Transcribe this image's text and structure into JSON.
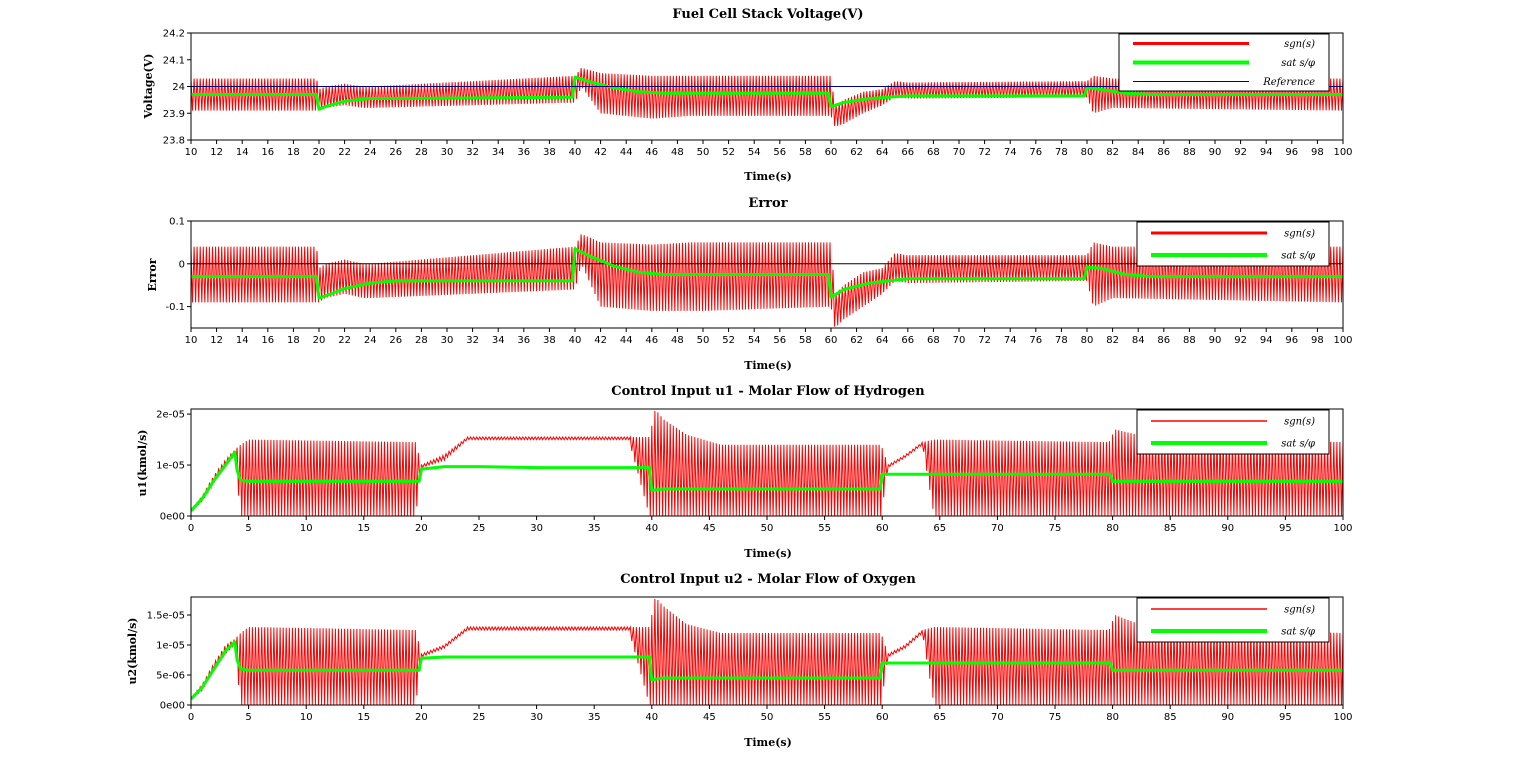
{
  "colors": {
    "sgn": "#ff0000",
    "sat": "#00ff00",
    "reference": "#000080",
    "axis": "#000000"
  },
  "legend_placement": "top-right",
  "chart_data": [
    {
      "type": "line",
      "title": "Fuel Cell Stack Voltage(V)",
      "xlabel": "Time(s)",
      "ylabel": "Voltage(V)",
      "xlim": [
        10,
        100
      ],
      "ylim": [
        23.8,
        24.2
      ],
      "xticks": [
        10,
        12,
        14,
        16,
        18,
        20,
        22,
        24,
        26,
        28,
        30,
        32,
        34,
        36,
        38,
        40,
        42,
        44,
        46,
        48,
        50,
        52,
        54,
        56,
        58,
        60,
        62,
        64,
        66,
        68,
        70,
        72,
        74,
        76,
        78,
        80,
        82,
        84,
        86,
        88,
        90,
        92,
        94,
        96,
        98,
        100
      ],
      "yticks": [
        {
          "value": 23.8,
          "label": "23.8"
        },
        {
          "value": 23.9,
          "label": "23.9"
        },
        {
          "value": 24.0,
          "label": "24"
        },
        {
          "value": 24.1,
          "label": "24.1"
        },
        {
          "value": 24.2,
          "label": "24.2"
        }
      ],
      "grid": false,
      "legend": [
        {
          "label": "sgn(s)",
          "key": "sgn"
        },
        {
          "label": "sat s/φ",
          "key": "sat"
        },
        {
          "label": "Reference",
          "key": "reference"
        }
      ],
      "series": [
        {
          "key": "sat",
          "x": [
            10,
            19.8,
            20,
            20.5,
            22,
            24,
            26,
            39.8,
            40,
            41,
            43,
            45,
            47,
            59.8,
            60,
            61,
            63,
            64.5,
            66,
            79.8,
            80,
            81,
            83,
            85,
            100
          ],
          "y": [
            23.97,
            23.97,
            23.915,
            23.925,
            23.945,
            23.955,
            23.955,
            23.96,
            24.035,
            24.02,
            23.995,
            23.98,
            23.975,
            23.975,
            23.925,
            23.94,
            23.955,
            23.96,
            23.965,
            23.965,
            23.995,
            23.99,
            23.975,
            23.97,
            23.97
          ]
        },
        {
          "key": "reference",
          "x": [
            10,
            100
          ],
          "y": [
            24,
            24
          ]
        },
        {
          "key": "sgn",
          "envelope": true,
          "x": [
            10,
            19.8,
            20,
            20.5,
            22,
            23.5,
            24,
            40,
            40.5,
            42,
            46,
            49,
            50,
            60,
            60.3,
            61,
            62.5,
            64,
            65,
            66,
            80,
            80.5,
            82,
            100
          ],
          "ymax": [
            24.03,
            24.03,
            23.99,
            24.0,
            24.01,
            24.0,
            24.0,
            24.04,
            24.07,
            24.05,
            24.04,
            24.04,
            24.04,
            24.04,
            23.93,
            23.95,
            23.98,
            23.99,
            24.02,
            24.015,
            24.02,
            24.04,
            24.03,
            24.03
          ],
          "ymin": [
            23.91,
            23.91,
            23.91,
            23.92,
            23.93,
            23.92,
            23.92,
            23.94,
            24.0,
            23.9,
            23.88,
            23.89,
            23.89,
            23.89,
            23.85,
            23.86,
            23.9,
            23.93,
            23.96,
            23.955,
            23.96,
            23.9,
            23.92,
            23.91
          ]
        }
      ]
    },
    {
      "type": "line",
      "title": "Error",
      "xlabel": "Time(s)",
      "ylabel": "Error",
      "xlim": [
        10,
        100
      ],
      "ylim": [
        -0.15,
        0.1
      ],
      "xticks": [
        10,
        12,
        14,
        16,
        18,
        20,
        22,
        24,
        26,
        28,
        30,
        32,
        34,
        36,
        38,
        40,
        42,
        44,
        46,
        48,
        50,
        52,
        54,
        56,
        58,
        60,
        62,
        64,
        66,
        68,
        70,
        72,
        74,
        76,
        78,
        80,
        82,
        84,
        86,
        88,
        90,
        92,
        94,
        96,
        98,
        100
      ],
      "yticks": [
        {
          "value": 0.1,
          "label": "0.1"
        },
        {
          "value": 0,
          "label": "0"
        },
        {
          "value": -0.1,
          "label": "-0.1"
        }
      ],
      "grid": false,
      "legend": [
        {
          "label": "sgn(s)",
          "key": "sgn"
        },
        {
          "label": "sat s/φ",
          "key": "sat"
        }
      ],
      "series": [
        {
          "key": "zero",
          "x": [
            10,
            100
          ],
          "y": [
            0,
            0
          ]
        },
        {
          "key": "sat",
          "x": [
            10,
            19.8,
            20,
            20.5,
            22,
            24,
            26,
            39.8,
            40,
            41,
            43,
            45,
            47,
            59.8,
            60,
            61,
            63,
            64.5,
            66,
            79.8,
            80,
            81,
            83,
            85,
            100
          ],
          "y": [
            -0.03,
            -0.03,
            -0.08,
            -0.075,
            -0.058,
            -0.045,
            -0.04,
            -0.04,
            0.035,
            0.02,
            -0.005,
            -0.02,
            -0.025,
            -0.025,
            -0.078,
            -0.06,
            -0.045,
            -0.04,
            -0.035,
            -0.035,
            -0.008,
            -0.01,
            -0.025,
            -0.03,
            -0.03
          ]
        },
        {
          "key": "sgn",
          "envelope": true,
          "x": [
            10,
            19.8,
            20,
            20.5,
            22,
            23.5,
            24,
            40,
            40.5,
            42,
            46,
            49,
            50,
            60,
            60.3,
            61,
            62.5,
            64,
            65,
            66,
            80,
            80.5,
            82,
            100
          ],
          "ymax": [
            0.04,
            0.04,
            -0.01,
            0.0,
            0.01,
            0.0,
            0.0,
            0.04,
            0.07,
            0.05,
            0.045,
            0.05,
            0.05,
            0.05,
            -0.07,
            -0.05,
            -0.02,
            -0.01,
            0.025,
            0.02,
            0.02,
            0.05,
            0.04,
            0.04
          ],
          "ymin": [
            -0.09,
            -0.09,
            -0.09,
            -0.08,
            -0.07,
            -0.08,
            -0.08,
            -0.06,
            0.0,
            -0.1,
            -0.11,
            -0.11,
            -0.11,
            -0.1,
            -0.15,
            -0.13,
            -0.1,
            -0.07,
            -0.04,
            -0.045,
            -0.04,
            -0.1,
            -0.08,
            -0.09
          ]
        }
      ]
    },
    {
      "type": "line",
      "title": "Control Input u1 - Molar Flow of Hydrogen",
      "xlabel": "Time(s)",
      "ylabel": "u1(kmol/s)",
      "xlim": [
        0,
        100
      ],
      "ylim": [
        0,
        2.1e-05
      ],
      "xticks": [
        0,
        5,
        10,
        15,
        20,
        25,
        30,
        35,
        40,
        45,
        50,
        55,
        60,
        65,
        70,
        75,
        80,
        85,
        90,
        95,
        100
      ],
      "yticks": [
        {
          "value": 0,
          "label": "0e00"
        },
        {
          "value": 1e-05,
          "label": "1e-05"
        },
        {
          "value": 2e-05,
          "label": "2e-05"
        }
      ],
      "grid": false,
      "legend": [
        {
          "label": "sgn(s)",
          "key": "sgn"
        },
        {
          "label": "sat s/φ",
          "key": "sat"
        }
      ],
      "series": [
        {
          "key": "sat",
          "x": [
            0,
            1,
            2,
            3,
            3.8,
            4,
            4.3,
            5,
            19.8,
            20,
            22,
            25,
            30,
            39.8,
            40,
            41,
            50,
            59.8,
            60,
            79.8,
            80,
            100
          ],
          "y": [
            1e-06,
            3.5e-06,
            7e-06,
            1e-05,
            1.25e-05,
            9e-06,
            7e-06,
            6.8e-06,
            6.8e-06,
            9.2e-06,
            9.7e-06,
            9.7e-06,
            9.5e-06,
            9.5e-06,
            5e-06,
            5.3e-06,
            5.3e-06,
            5.3e-06,
            8.2e-06,
            8.2e-06,
            6.8e-06,
            6.8e-06
          ]
        },
        {
          "key": "sgn",
          "envelope": true,
          "x": [
            0,
            1,
            2,
            3,
            3.8,
            4.3,
            5,
            19.5,
            20,
            22,
            24,
            28,
            38,
            39.8,
            40.3,
            41,
            43,
            46,
            59.9,
            60.5,
            62,
            63.5,
            64.5,
            79.7,
            80.2,
            83,
            100
          ],
          "ymax": [
            1.2e-06,
            4e-06,
            8e-06,
            1.1e-05,
            1.3e-05,
            1.4e-05,
            1.5e-05,
            1.45e-05,
            1e-05,
            1.2e-05,
            1.55e-05,
            1.55e-05,
            1.55e-05,
            1.55e-05,
            2.1e-05,
            1.9e-05,
            1.6e-05,
            1.4e-05,
            1.4e-05,
            1e-05,
            1.2e-05,
            1.45e-05,
            1.5e-05,
            1.45e-05,
            1.7e-05,
            1.55e-05,
            1.45e-05
          ],
          "ymin": [
            1e-06,
            3e-06,
            6.5e-06,
            1e-05,
            1.2e-05,
            0,
            0,
            0,
            9.5e-06,
            1.1e-05,
            1.5e-05,
            1.5e-05,
            1.5e-05,
            0,
            0,
            0,
            0,
            0,
            0,
            9.5e-06,
            1.15e-05,
            1.4e-05,
            0,
            0,
            0,
            0,
            0
          ]
        }
      ]
    },
    {
      "type": "line",
      "title": "Control Input u2 - Molar Flow of Oxygen",
      "xlabel": "Time(s)",
      "ylabel": "u2(kmol/s)",
      "xlim": [
        0,
        100
      ],
      "ylim": [
        0,
        1.8e-05
      ],
      "xticks": [
        0,
        5,
        10,
        15,
        20,
        25,
        30,
        35,
        40,
        45,
        50,
        55,
        60,
        65,
        70,
        75,
        80,
        85,
        90,
        95,
        100
      ],
      "yticks": [
        {
          "value": 0,
          "label": "0e00"
        },
        {
          "value": 5e-06,
          "label": "5e-06"
        },
        {
          "value": 1e-05,
          "label": "1e-05"
        },
        {
          "value": 1.5e-05,
          "label": "1.5e-05"
        }
      ],
      "grid": false,
      "legend": [
        {
          "label": "sgn(s)",
          "key": "sgn"
        },
        {
          "label": "sat s/φ",
          "key": "sat"
        }
      ],
      "series": [
        {
          "key": "sat",
          "x": [
            0,
            1,
            2,
            3,
            3.8,
            4,
            4.3,
            5,
            19.8,
            20,
            22,
            25,
            30,
            39.8,
            40,
            41,
            50,
            59.8,
            60,
            79.8,
            80,
            100
          ],
          "y": [
            1e-06,
            3e-06,
            6e-06,
            9e-06,
            1.05e-05,
            7.5e-06,
            6e-06,
            5.8e-06,
            5.8e-06,
            7.8e-06,
            8e-06,
            8e-06,
            8e-06,
            8e-06,
            4.2e-06,
            4.5e-06,
            4.5e-06,
            4.5e-06,
            7e-06,
            7e-06,
            5.8e-06,
            5.8e-06
          ]
        },
        {
          "key": "sgn",
          "envelope": true,
          "x": [
            0,
            1,
            2,
            3,
            3.8,
            4.3,
            5,
            19.5,
            20,
            22,
            24,
            28,
            38,
            39.8,
            40.3,
            41,
            43,
            46,
            59.9,
            60.5,
            62,
            63.5,
            64.5,
            79.7,
            80.2,
            83,
            100
          ],
          "ymax": [
            1.2e-06,
            3.5e-06,
            7e-06,
            1e-05,
            1.1e-05,
            1.2e-05,
            1.3e-05,
            1.25e-05,
            8.5e-06,
            1e-05,
            1.3e-05,
            1.3e-05,
            1.3e-05,
            1.3e-05,
            1.8e-05,
            1.65e-05,
            1.35e-05,
            1.2e-05,
            1.2e-05,
            8.5e-06,
            1e-05,
            1.25e-05,
            1.3e-05,
            1.25e-05,
            1.5e-05,
            1.3e-05,
            1.2e-05
          ],
          "ymin": [
            1e-06,
            2.5e-06,
            6e-06,
            8.5e-06,
            1e-05,
            0,
            0,
            0,
            8e-06,
            9.5e-06,
            1.25e-05,
            1.25e-05,
            1.25e-05,
            0,
            0,
            0,
            0,
            0,
            0,
            8e-06,
            9.5e-06,
            1.2e-05,
            0,
            0,
            0,
            0,
            0
          ]
        }
      ]
    }
  ]
}
